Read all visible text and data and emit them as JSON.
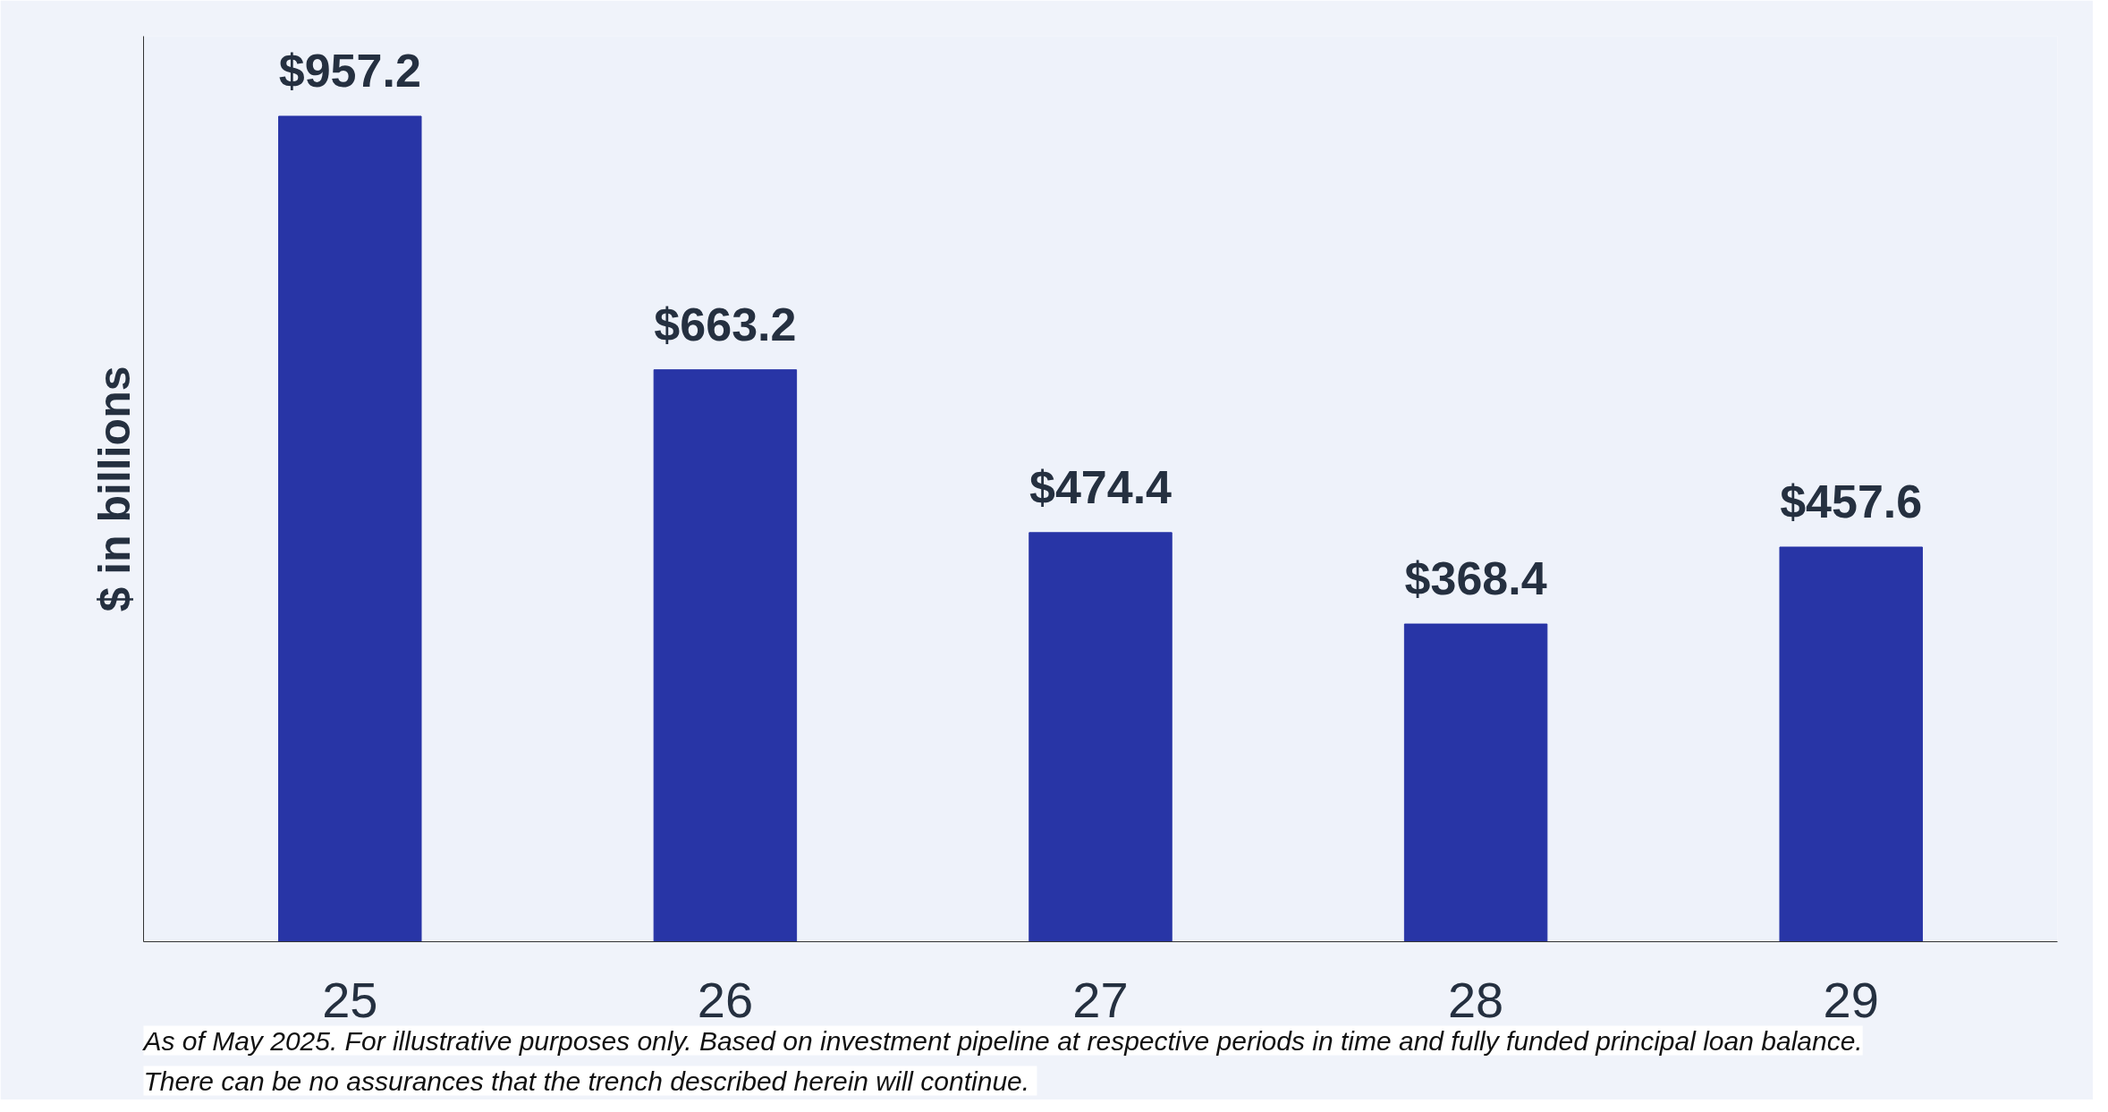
{
  "chart_data": {
    "type": "bar",
    "ylabel": "$ in billions",
    "categories": [
      "25",
      "26",
      "27",
      "28",
      "29"
    ],
    "values": [
      957.2,
      663.2,
      474.4,
      368.4,
      457.6
    ],
    "color": "#2835a6",
    "value_labels": [
      "$957.2",
      "$663.2",
      "$474.4",
      "$368.4",
      "$457.6"
    ],
    "ylim": [
      0,
      1050
    ],
    "tick_labels": "x",
    "annotations": [
      "As of May 2025. For illustrative purposes only. Based on investment pipeline at respective periods in time and fully funded principal loan balance.",
      "There can  be no assurances that the trench described herein will continue."
    ]
  }
}
